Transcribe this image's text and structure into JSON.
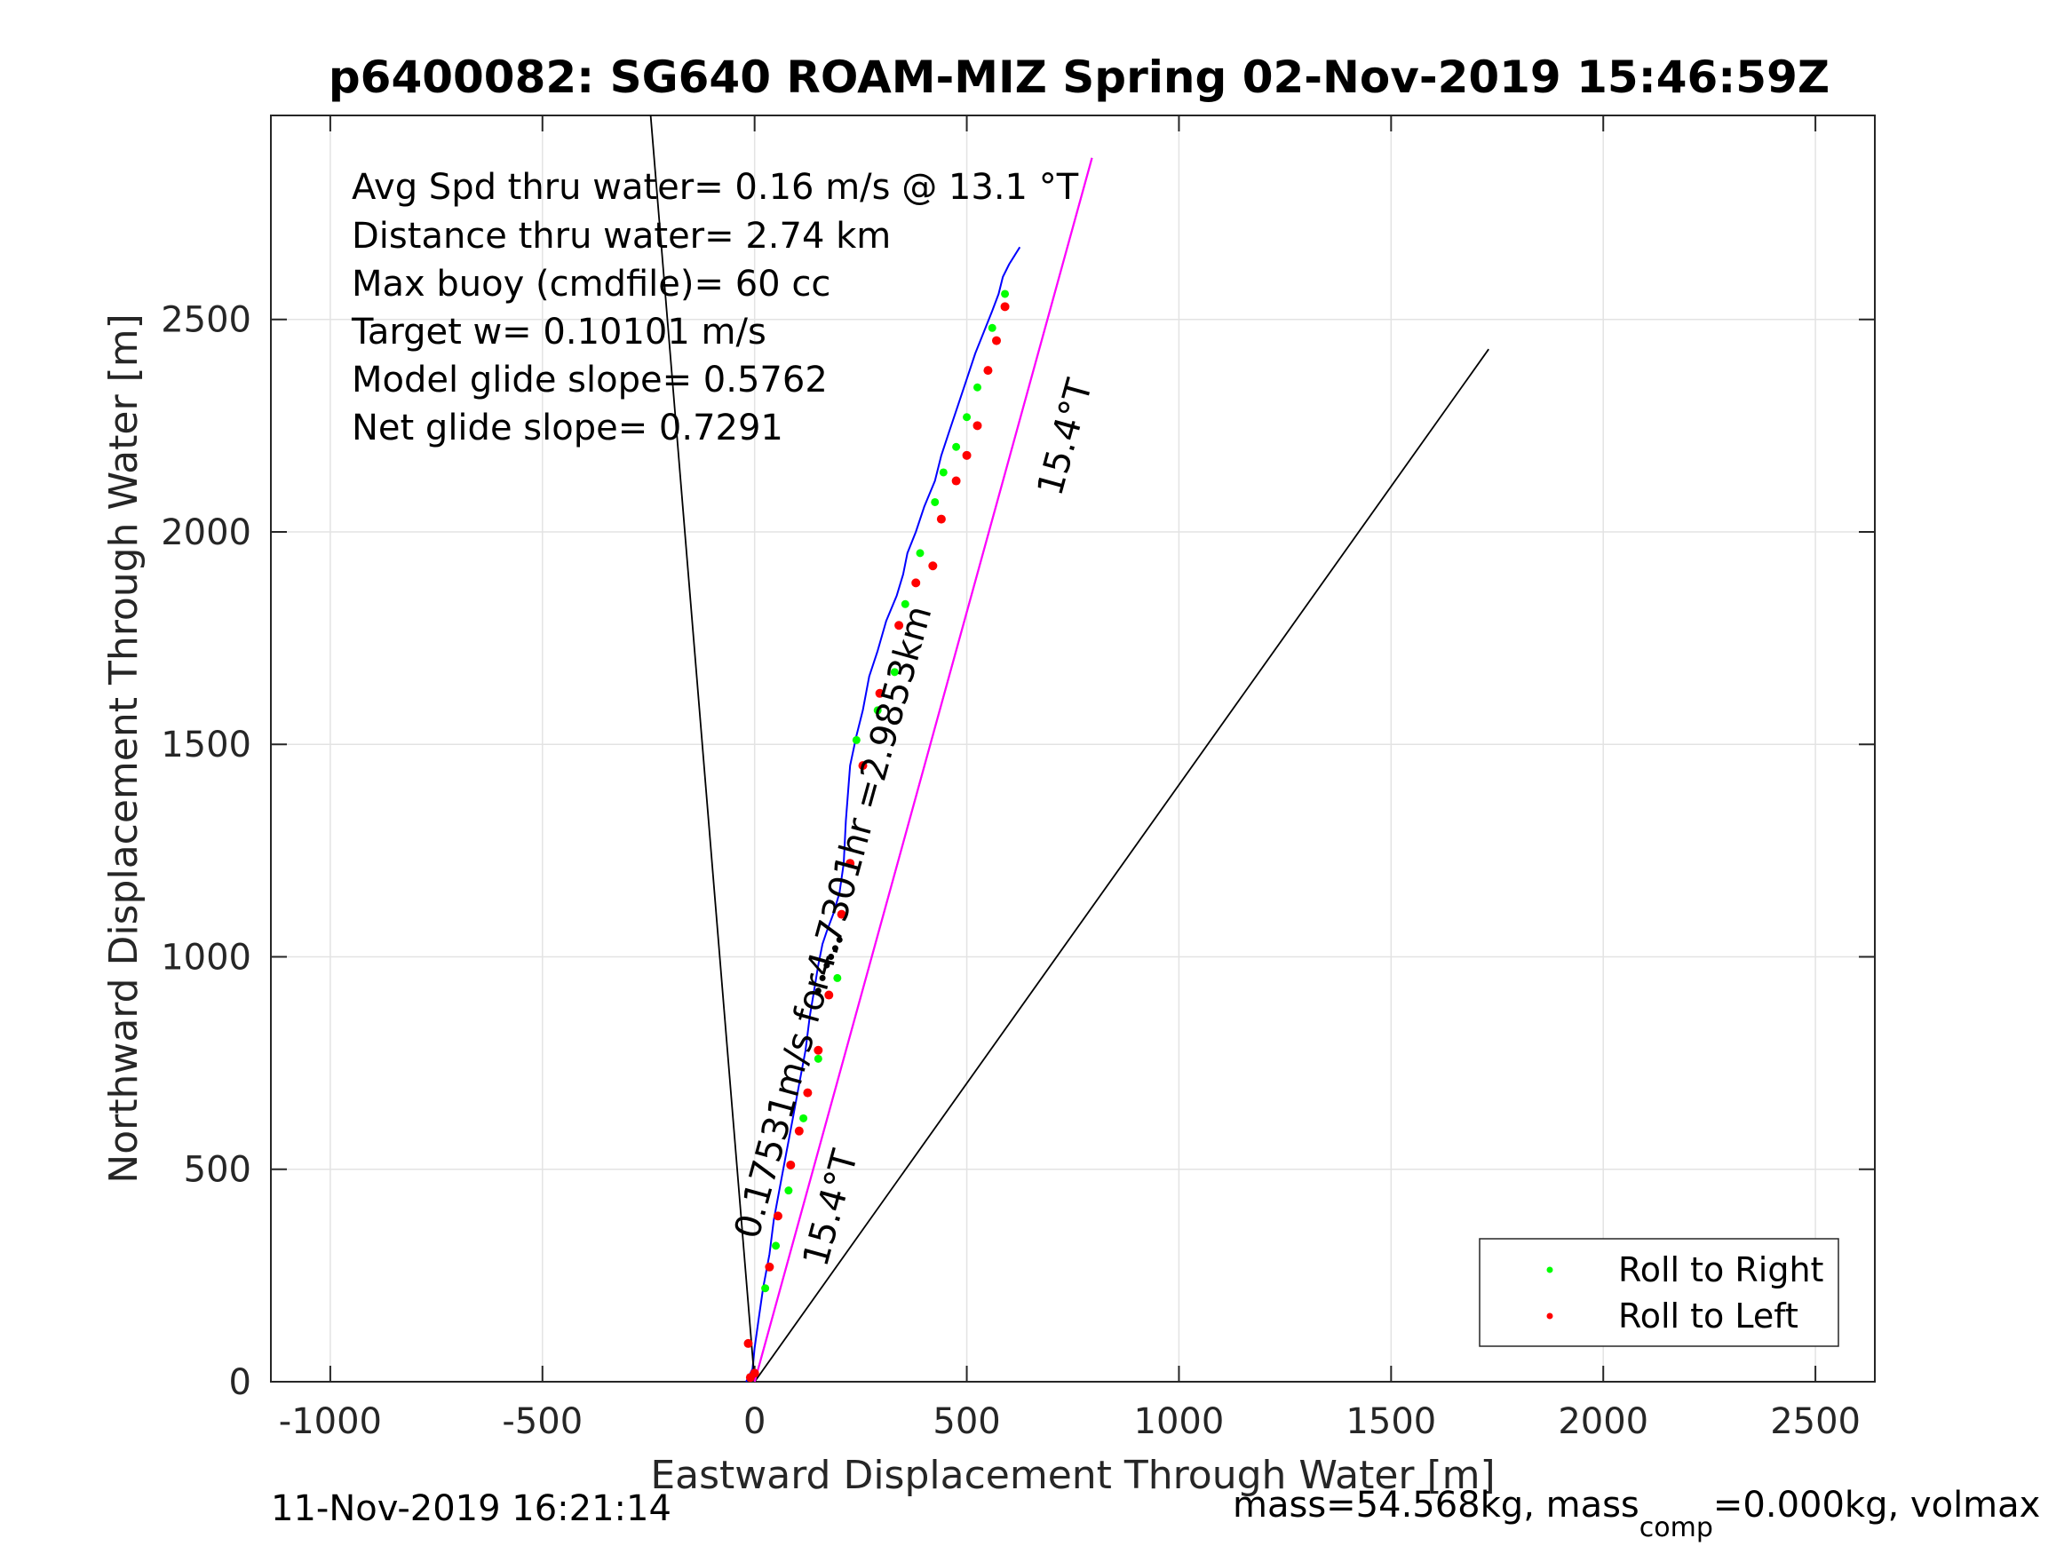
{
  "title": "p6400082: SG640 ROAM-MIZ Spring 02-Nov-2019 15:46:59Z",
  "footer": {
    "left": "11-Nov-2019 16:21:14",
    "right_prefix": "mass=54.568kg, mass",
    "right_subscript": "comp",
    "right_suffix": "=0.000kg, volmax"
  },
  "annotations": {
    "stats": [
      "Avg Spd thru water=  0.16 m/s @  13.1 °T",
      "Distance thru water=  2.74 km",
      "Max buoy (cmdfile)= 60 cc",
      "Target w= 0.10101 m/s",
      "Model glide slope= 0.5762",
      "Net glide slope= 0.7291"
    ],
    "heading_label_upper": "15.4°T",
    "heading_label_lower": "15.4°T",
    "drift_label": "0.17531m/s for4.7301hr =2.9853km"
  },
  "chart_data": {
    "type": "line",
    "title": "p6400082: SG640 ROAM-MIZ Spring 02-Nov-2019 15:46:59Z",
    "xlabel": "Eastward Displacement Through Water [m]",
    "ylabel": "Northward Displacement Through Water [m]",
    "xlim": [
      -1140,
      2640
    ],
    "ylim": [
      0,
      2980
    ],
    "xticks": [
      -1000,
      -500,
      0,
      500,
      1000,
      1500,
      2000,
      2500
    ],
    "yticks": [
      0,
      500,
      1000,
      1500,
      2000,
      2500
    ],
    "xtick_labels": [
      "-1000",
      "-500",
      "0",
      "500",
      "1000",
      "1500",
      "2000",
      "2500"
    ],
    "ytick_labels": [
      "0",
      "500",
      "1000",
      "1500",
      "2000",
      "2500"
    ],
    "grid": true,
    "legend": {
      "placement": "bottom-right",
      "entries": [
        {
          "label": "Roll to Right",
          "color": "#00ff00"
        },
        {
          "label": "Roll to Left",
          "color": "#ff0000"
        }
      ]
    },
    "series": [
      {
        "role": "track",
        "color": "#0000ff",
        "x": [
          -20,
          -5,
          0,
          10,
          20,
          35,
          45,
          60,
          75,
          90,
          105,
          120,
          130,
          140,
          150,
          160,
          170,
          185,
          200,
          210,
          215,
          225,
          240,
          255,
          270,
          290,
          310,
          335,
          350,
          360,
          380,
          400,
          425,
          440,
          460,
          480,
          500,
          520,
          540,
          560,
          575,
          585,
          600,
          625
        ],
        "y": [
          0,
          30,
          80,
          150,
          220,
          300,
          380,
          460,
          540,
          620,
          700,
          780,
          860,
          920,
          980,
          1030,
          1060,
          1100,
          1150,
          1220,
          1320,
          1450,
          1520,
          1580,
          1660,
          1720,
          1790,
          1850,
          1900,
          1950,
          2000,
          2060,
          2120,
          2180,
          2240,
          2300,
          2360,
          2420,
          2470,
          2520,
          2560,
          2600,
          2630,
          2670
        ]
      },
      {
        "role": "heading-line-1",
        "color": "#000000",
        "x": [
          -245,
          0
        ],
        "y": [
          2980,
          0
        ]
      },
      {
        "role": "heading-line-2",
        "color": "#000000",
        "x": [
          0,
          1730
        ],
        "y": [
          0,
          2430
        ]
      },
      {
        "role": "heading-line-3",
        "color": "#000000",
        "x": [
          0,
          795
        ],
        "y": [
          0,
          2880
        ]
      },
      {
        "role": "drift-line",
        "color": "#ff00ff",
        "x": [
          0,
          795
        ],
        "y": [
          0,
          2880
        ]
      }
    ],
    "roll_right": {
      "color": "#00ff00",
      "x": [
        25,
        50,
        80,
        115,
        150,
        195,
        240,
        290,
        330,
        355,
        390,
        425,
        445,
        475,
        500,
        525,
        560,
        590
      ],
      "y": [
        220,
        320,
        450,
        620,
        760,
        950,
        1510,
        1580,
        1670,
        1830,
        1950,
        2070,
        2140,
        2200,
        2270,
        2340,
        2480,
        2560
      ]
    },
    "roll_left": {
      "color": "#ff0000",
      "x": [
        -10,
        -15,
        0,
        35,
        55,
        85,
        105,
        125,
        150,
        175,
        205,
        225,
        255,
        295,
        340,
        380,
        420,
        440,
        475,
        500,
        525,
        550,
        570,
        590
      ],
      "y": [
        10,
        90,
        20,
        270,
        390,
        510,
        590,
        680,
        780,
        910,
        1100,
        1220,
        1450,
        1620,
        1780,
        1880,
        1920,
        2030,
        2120,
        2180,
        2250,
        2380,
        2450,
        2530
      ]
    },
    "black_dots": {
      "color": "#000000",
      "x": [
        150,
        160,
        170,
        180,
        190,
        200
      ],
      "y": [
        920,
        950,
        980,
        1000,
        1020,
        1040
      ]
    }
  }
}
